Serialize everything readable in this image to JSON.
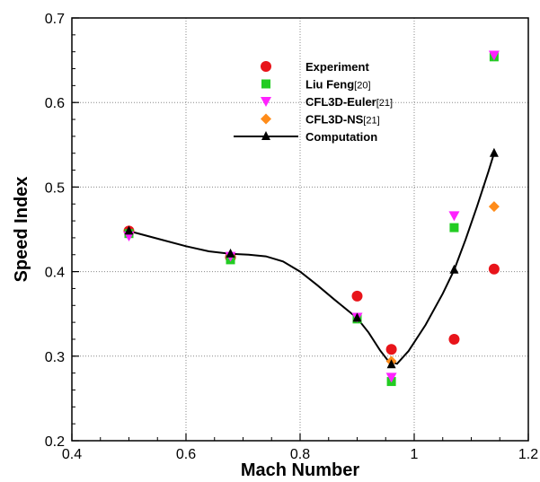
{
  "chart_data": {
    "type": "scatter",
    "xlabel": "Mach Number",
    "ylabel": "Speed Index",
    "xlim": [
      0.4,
      1.2
    ],
    "ylim": [
      0.2,
      0.7
    ],
    "xticks": [
      "0.4",
      "0.6",
      "0.8",
      "1",
      "1.2"
    ],
    "yticks": [
      "0.2",
      "0.3",
      "0.4",
      "0.5",
      "0.6",
      "0.7"
    ],
    "grid": true,
    "legend_position": "top-center",
    "series": [
      {
        "name": "Experiment",
        "marker": "circle",
        "color": "#e8141a",
        "x": [
          0.5,
          0.678,
          0.9,
          0.96,
          1.07,
          1.14
        ],
        "y": [
          0.448,
          0.417,
          0.371,
          0.308,
          0.32,
          0.403
        ]
      },
      {
        "name": "Liu Feng",
        "ref": "[20]",
        "marker": "square",
        "color": "#22cc22",
        "x": [
          0.5,
          0.678,
          0.9,
          0.96,
          1.07,
          1.14
        ],
        "y": [
          0.445,
          0.414,
          0.344,
          0.27,
          0.452,
          0.654
        ]
      },
      {
        "name": "CFL3D-Euler",
        "ref": "[21]",
        "marker": "triangle-down",
        "color": "#ff22ff",
        "x": [
          0.5,
          0.678,
          0.9,
          0.96,
          1.07,
          1.14
        ],
        "y": [
          0.442,
          0.418,
          0.346,
          0.275,
          0.466,
          0.656
        ]
      },
      {
        "name": "CFL3D-NS",
        "ref": "[21]",
        "marker": "diamond",
        "color": "#ff8c1a",
        "x": [
          0.96,
          1.14
        ],
        "y": [
          0.294,
          0.477
        ]
      },
      {
        "name": "Computation",
        "marker": "triangle-up",
        "line": true,
        "color": "#000000",
        "x": [
          0.5,
          0.678,
          0.9,
          0.96,
          1.07,
          1.14
        ],
        "y": [
          0.448,
          0.421,
          0.345,
          0.29,
          0.402,
          0.54
        ],
        "curve": [
          [
            0.5,
            0.448
          ],
          [
            0.55,
            0.439
          ],
          [
            0.6,
            0.43
          ],
          [
            0.64,
            0.424
          ],
          [
            0.678,
            0.421
          ],
          [
            0.71,
            0.42
          ],
          [
            0.74,
            0.418
          ],
          [
            0.77,
            0.412
          ],
          [
            0.8,
            0.4
          ],
          [
            0.83,
            0.384
          ],
          [
            0.86,
            0.367
          ],
          [
            0.9,
            0.345
          ],
          [
            0.92,
            0.328
          ],
          [
            0.94,
            0.307
          ],
          [
            0.955,
            0.294
          ],
          [
            0.97,
            0.291
          ],
          [
            0.99,
            0.306
          ],
          [
            1.02,
            0.337
          ],
          [
            1.05,
            0.374
          ],
          [
            1.07,
            0.402
          ],
          [
            1.09,
            0.438
          ],
          [
            1.11,
            0.477
          ],
          [
            1.13,
            0.518
          ],
          [
            1.14,
            0.54
          ]
        ]
      }
    ]
  }
}
